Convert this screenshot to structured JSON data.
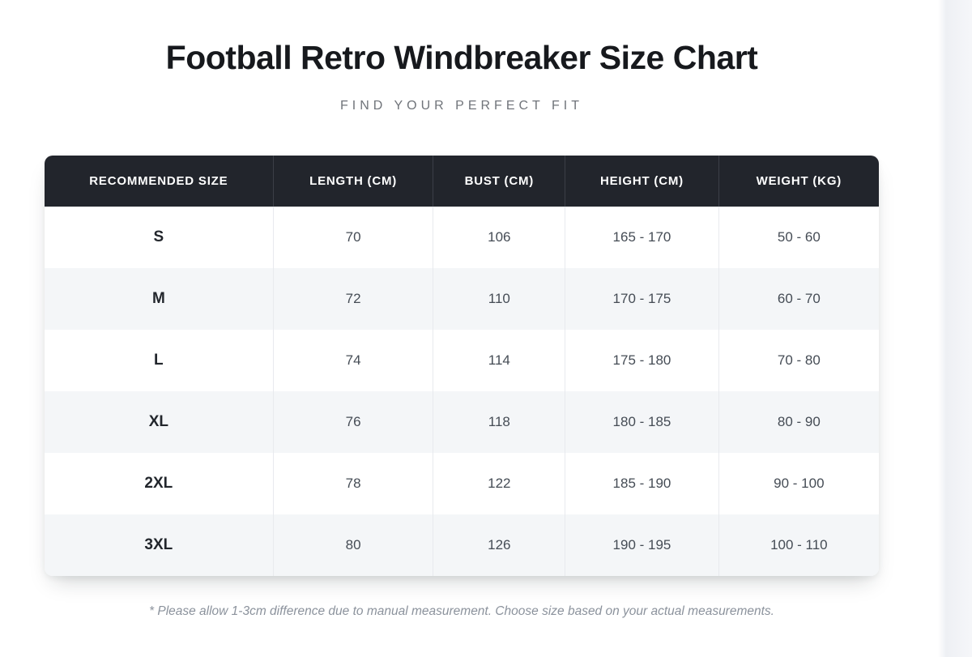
{
  "page": {
    "title": "Football Retro Windbreaker Size Chart",
    "subtitle": "FIND YOUR PERFECT FIT",
    "note": "* Please allow 1-3cm difference due to manual measurement. Choose size based on your actual measurements."
  },
  "size_chart": {
    "columns": [
      "RECOMMENDED SIZE",
      "LENGTH (CM)",
      "BUST (CM)",
      "HEIGHT (CM)",
      "WEIGHT (KG)"
    ],
    "rows": [
      [
        "S",
        "70",
        "106",
        "165 - 170",
        "50 - 60"
      ],
      [
        "M",
        "72",
        "110",
        "170 - 175",
        "60 - 70"
      ],
      [
        "L",
        "74",
        "114",
        "175 - 180",
        "70 - 80"
      ],
      [
        "XL",
        "76",
        "118",
        "180 - 185",
        "80 - 90"
      ],
      [
        "2XL",
        "78",
        "122",
        "185 - 190",
        "90 - 100"
      ],
      [
        "3XL",
        "80",
        "126",
        "190 - 195",
        "100 - 110"
      ]
    ]
  },
  "colors": {
    "header_bg": "#22252c",
    "header_text": "#ffffff",
    "stripe_bg": "#f4f6f8",
    "title_color": "#17191d",
    "subtitle_color": "#70747a",
    "size_color": "#22262c",
    "value_color": "#454c55",
    "note_color": "#8b929c",
    "band_bg": "#eef0f4"
  }
}
